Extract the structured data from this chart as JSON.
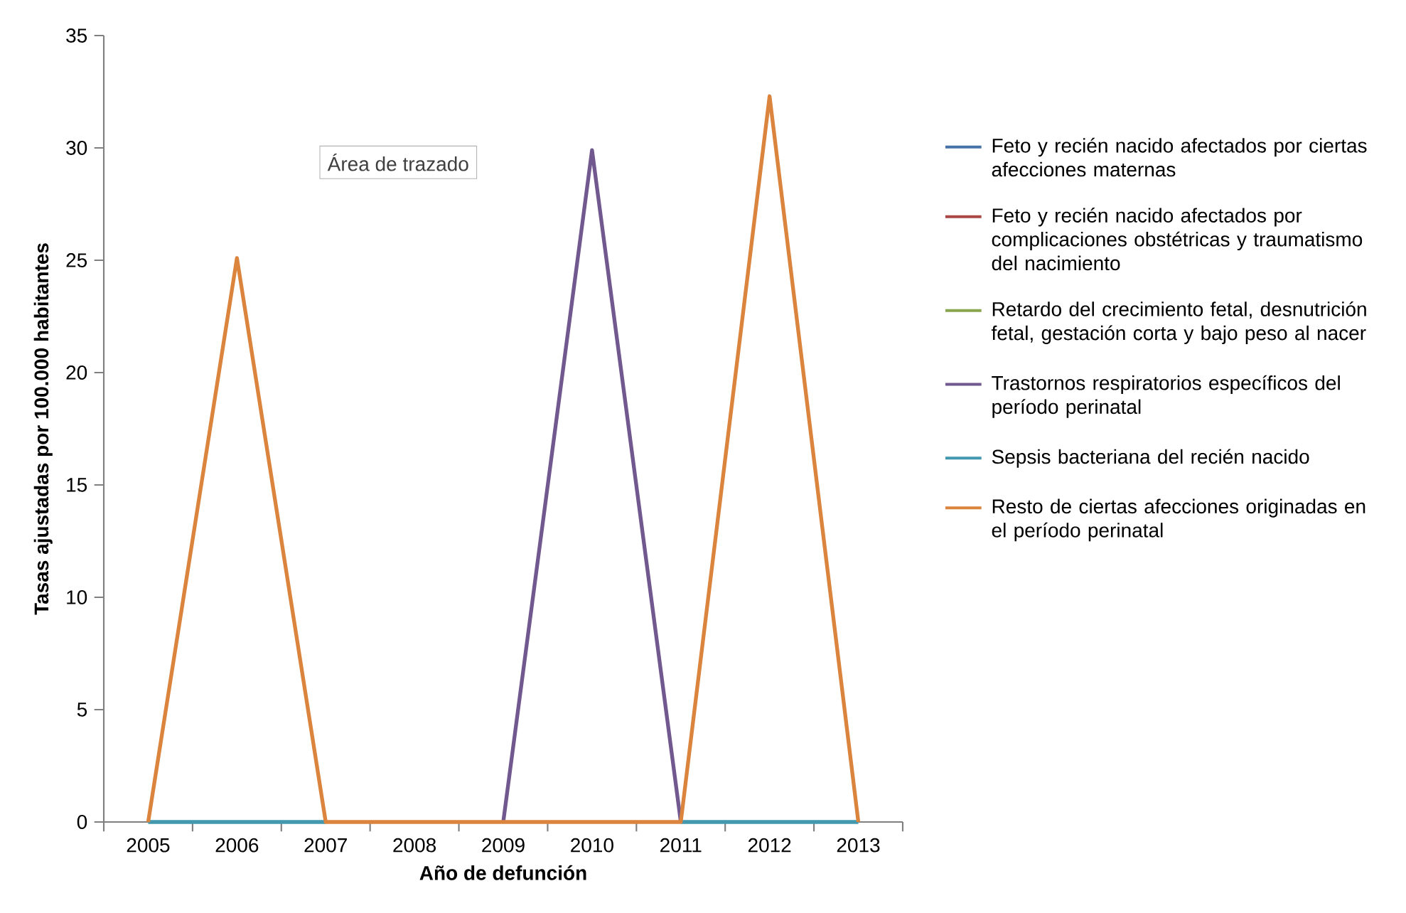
{
  "chart_data": {
    "type": "line",
    "xlabel": "Año de defunción",
    "ylabel": "Tasas ajustadas por 100.000 habitantes",
    "categories": [
      "2005",
      "2006",
      "2007",
      "2008",
      "2009",
      "2010",
      "2011",
      "2012",
      "2013"
    ],
    "ylim": [
      0,
      35
    ],
    "yticks": [
      0,
      5,
      10,
      15,
      20,
      25,
      30,
      35
    ],
    "grid": false,
    "legend": "right",
    "marker": "none",
    "line_style": "solid",
    "annotations": [
      "Área de trazado"
    ],
    "series": [
      {
        "name": "Feto y recién nacido afectados por ciertas afecciones maternas",
        "color": "#4572a7",
        "values": [
          null,
          null,
          null,
          null,
          null,
          null,
          null,
          null,
          null
        ]
      },
      {
        "name": "Feto y recién nacido afectados por complicaciones obstétricas y traumatismo del nacimiento",
        "color": "#aa4643",
        "values": [
          null,
          null,
          null,
          null,
          null,
          null,
          null,
          null,
          null
        ]
      },
      {
        "name": "Retardo del crecimiento fetal, desnutrición fetal, gestación corta y bajo peso al nacer",
        "color": "#89a54e",
        "values": [
          null,
          null,
          null,
          null,
          null,
          null,
          null,
          null,
          null
        ]
      },
      {
        "name": "Trastornos respiratorios específicos del período perinatal",
        "color": "#71588f",
        "values": [
          null,
          null,
          null,
          null,
          0,
          29.9,
          0,
          null,
          null
        ]
      },
      {
        "name": "Sepsis bacteriana del recién nacido",
        "color": "#4198af",
        "values": [
          0,
          0,
          0,
          null,
          null,
          null,
          0,
          0,
          0
        ]
      },
      {
        "name": "Resto de ciertas afecciones originadas en el período perinatal",
        "color": "#db843d",
        "values": [
          0,
          25.1,
          0,
          0,
          0,
          0,
          0,
          32.3,
          0
        ]
      }
    ]
  }
}
